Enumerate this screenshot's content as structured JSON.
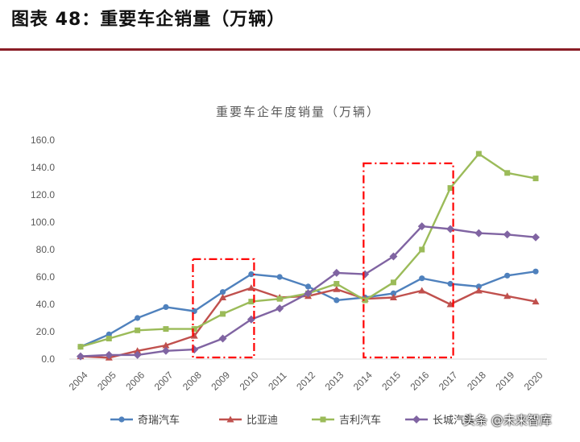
{
  "figure": {
    "title": "图表 48：重要车企销量（万辆）",
    "watermark": "头条 @未来智库"
  },
  "chart_data": {
    "type": "line",
    "title": "重要车企年度销量（万辆）",
    "xlabel": "",
    "ylabel": "",
    "x": [
      "2004",
      "2005",
      "2006",
      "2007",
      "2008",
      "2009",
      "2010",
      "2011",
      "2012",
      "2013",
      "2014",
      "2015",
      "2016",
      "2017",
      "2018",
      "2019",
      "2020"
    ],
    "ylim": [
      0,
      160
    ],
    "yticks": [
      "0.0",
      "20.0",
      "40.0",
      "60.0",
      "80.0",
      "100.0",
      "120.0",
      "140.0",
      "160.0"
    ],
    "grid": false,
    "legend": "bottom",
    "series": [
      {
        "name": "奇瑞汽车",
        "color": "#4f81bd",
        "marker": "circle",
        "values": [
          9,
          18,
          30,
          38,
          35,
          49,
          62,
          60,
          53,
          43,
          45,
          48,
          59,
          55,
          53,
          61,
          64
        ]
      },
      {
        "name": "比亚迪",
        "color": "#c0504d",
        "marker": "triangle",
        "values": [
          2,
          1,
          6,
          10,
          17,
          45,
          52,
          45,
          46,
          51,
          44,
          45,
          50,
          40,
          50,
          46,
          42
        ]
      },
      {
        "name": "吉利汽车",
        "color": "#9bbb59",
        "marker": "square",
        "values": [
          9,
          15,
          21,
          22,
          22,
          33,
          42,
          44,
          48,
          55,
          43,
          56,
          80,
          125,
          150,
          136,
          132
        ]
      },
      {
        "name": "长城汽车",
        "color": "#8064a2",
        "marker": "diamond",
        "values": [
          2,
          3,
          3,
          6,
          7,
          15,
          29,
          37,
          48,
          63,
          62,
          75,
          97,
          95,
          92,
          91,
          89
        ]
      }
    ],
    "annotations": [
      {
        "type": "dash-dot-box",
        "color": "#ff0000",
        "x_from": "2008",
        "x_to": "2010",
        "y_from": 0,
        "y_to": 73
      },
      {
        "type": "dash-dot-box",
        "color": "#ff0000",
        "x_from": "2014",
        "x_to": "2017",
        "y_from": 0,
        "y_to": 143
      }
    ]
  }
}
